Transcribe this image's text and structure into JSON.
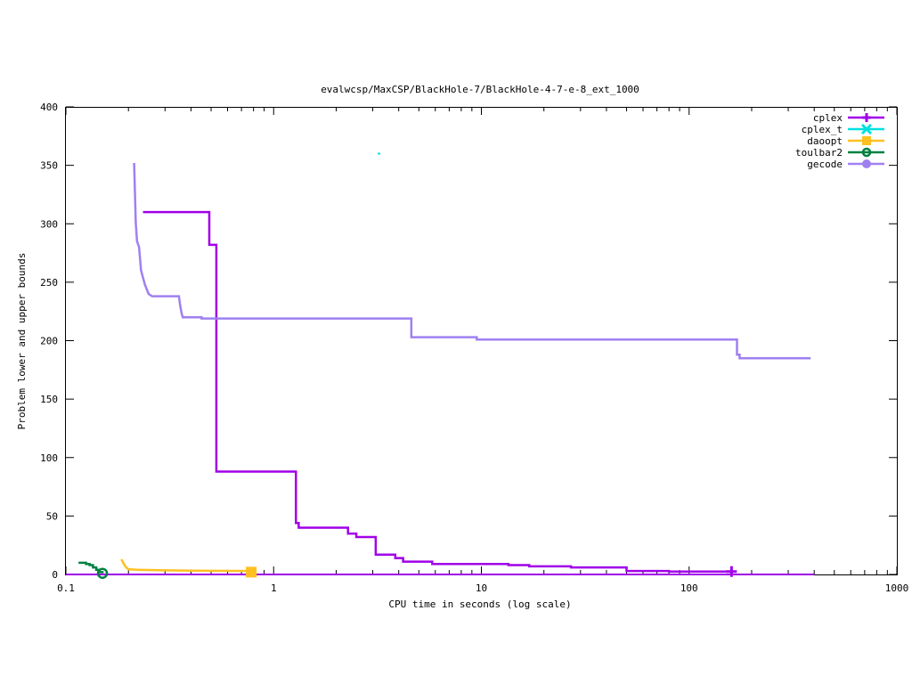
{
  "chart_data": {
    "type": "line",
    "title": "evalwcsp/MaxCSP/BlackHole-7/BlackHole-4-7-e-8_ext_1000",
    "xlabel": "CPU time in seconds (log scale)",
    "ylabel": "Problem lower and upper bounds",
    "xscale": "log",
    "xlim": [
      0.1,
      1000
    ],
    "ylim": [
      0,
      400
    ],
    "x_ticks": [
      0.1,
      1,
      10,
      100,
      1000
    ],
    "x_tick_labels": [
      "0.1",
      "1",
      "10",
      "100",
      "1000"
    ],
    "y_ticks": [
      0,
      50,
      100,
      150,
      200,
      250,
      300,
      350,
      400
    ],
    "y_tick_labels": [
      "0",
      "50",
      "100",
      "150",
      "200",
      "250",
      "300",
      "350",
      "400"
    ],
    "grid": false,
    "legend_position": "top-right",
    "series": [
      {
        "name": "cplex",
        "color": "#a100e8",
        "marker": "plus",
        "step": true,
        "points": [
          [
            0.235,
            310
          ],
          [
            0.49,
            310
          ],
          [
            0.49,
            282
          ],
          [
            0.53,
            282
          ],
          [
            0.53,
            88
          ],
          [
            1.28,
            88
          ],
          [
            1.28,
            44
          ],
          [
            1.32,
            44
          ],
          [
            1.32,
            40
          ],
          [
            2.28,
            40
          ],
          [
            2.28,
            35
          ],
          [
            2.5,
            35
          ],
          [
            2.5,
            32
          ],
          [
            3.1,
            32
          ],
          [
            3.1,
            17
          ],
          [
            3.85,
            17
          ],
          [
            3.85,
            14
          ],
          [
            4.2,
            14
          ],
          [
            4.2,
            11
          ],
          [
            5.8,
            11
          ],
          [
            5.8,
            9
          ],
          [
            13.5,
            9
          ],
          [
            13.5,
            8
          ],
          [
            17,
            8
          ],
          [
            17,
            7
          ],
          [
            27,
            7
          ],
          [
            27,
            6
          ],
          [
            50,
            6
          ],
          [
            50,
            3
          ],
          [
            80,
            3
          ],
          [
            80,
            2.5
          ],
          [
            160,
            2.5
          ]
        ],
        "lower_bound": [
          [
            0.1,
            0
          ],
          [
            400,
            0
          ]
        ],
        "end_marker": [
          160,
          2.5
        ]
      },
      {
        "name": "cplex_t",
        "color": "#00e0e0",
        "marker": "x",
        "step": false,
        "points": [
          [
            3.2,
            360
          ]
        ]
      },
      {
        "name": "daoopt",
        "color": "#ffc020",
        "marker": "square",
        "step": true,
        "points": [
          [
            0.185,
            13
          ],
          [
            0.19,
            9
          ],
          [
            0.195,
            6
          ],
          [
            0.2,
            4.5
          ],
          [
            0.22,
            4
          ],
          [
            0.3,
            3.5
          ],
          [
            0.4,
            3.2
          ],
          [
            0.78,
            3
          ]
        ],
        "end_marker": [
          0.78,
          2
        ]
      },
      {
        "name": "toulbar2",
        "color": "#008040",
        "marker": "circle-open",
        "step": true,
        "points": [
          [
            0.115,
            10
          ],
          [
            0.125,
            10
          ],
          [
            0.125,
            9
          ],
          [
            0.13,
            9
          ],
          [
            0.13,
            8
          ],
          [
            0.135,
            8
          ],
          [
            0.135,
            6
          ],
          [
            0.14,
            6
          ],
          [
            0.14,
            4
          ],
          [
            0.145,
            4
          ],
          [
            0.145,
            2
          ],
          [
            0.15,
            2
          ],
          [
            0.15,
            1
          ]
        ],
        "end_marker": [
          0.15,
          1
        ]
      },
      {
        "name": "gecode",
        "color": "#9f80f0",
        "marker": "circle-filled",
        "step": true,
        "points": [
          [
            0.213,
            352
          ],
          [
            0.215,
            326
          ],
          [
            0.217,
            300
          ],
          [
            0.22,
            285
          ],
          [
            0.225,
            280
          ],
          [
            0.23,
            260
          ],
          [
            0.24,
            248
          ],
          [
            0.25,
            240
          ],
          [
            0.26,
            238
          ],
          [
            0.35,
            238
          ],
          [
            0.355,
            230
          ],
          [
            0.36,
            224
          ],
          [
            0.365,
            220
          ],
          [
            0.45,
            220
          ],
          [
            0.45,
            219
          ],
          [
            4.6,
            219
          ],
          [
            4.6,
            203
          ],
          [
            9.5,
            203
          ],
          [
            9.5,
            201
          ],
          [
            170,
            201
          ],
          [
            170,
            188
          ],
          [
            175,
            188
          ],
          [
            175,
            185
          ],
          [
            380,
            185
          ],
          [
            380,
            184
          ]
        ]
      }
    ]
  }
}
